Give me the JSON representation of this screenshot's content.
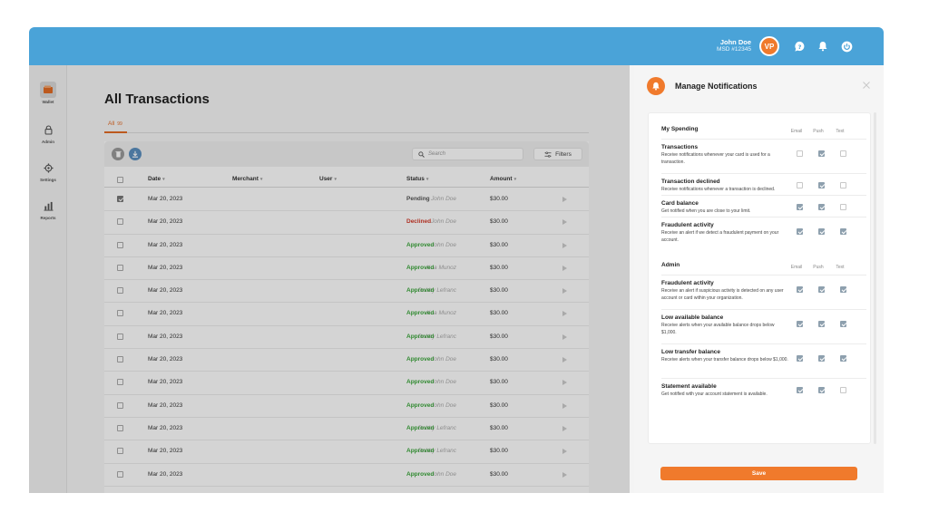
{
  "header": {
    "user_name": "John Doe",
    "user_id": "MSD #12345",
    "avatar_initials": "VP",
    "brand_color": "#4aa3d8",
    "accent_color": "#f07a2c"
  },
  "sidebar": {
    "items": [
      {
        "label": "Wallet",
        "icon": "wallet-icon"
      },
      {
        "label": "Admin",
        "icon": "lock-icon"
      },
      {
        "label": "Settings",
        "icon": "gear-icon"
      },
      {
        "label": "Reports",
        "icon": "bar-chart-icon"
      }
    ]
  },
  "main": {
    "title": "All Transactions",
    "tab": {
      "label": "All",
      "count": "99"
    },
    "search_placeholder": "Search",
    "filters_label": "Filters",
    "columns": [
      "Date",
      "Merchant",
      "User",
      "Status",
      "Amount"
    ],
    "rows": [
      {
        "date": "Mar 20, 2023",
        "merchant": "",
        "user": "John Doe",
        "status": "Pending",
        "amount": "$30.00",
        "checked": true
      },
      {
        "date": "Mar 20, 2023",
        "merchant": "",
        "user": "John Doe",
        "status": "Declined",
        "amount": "$30.00",
        "checked": false
      },
      {
        "date": "Mar 20, 2023",
        "merchant": "",
        "user": "John Doe",
        "status": "Approved",
        "amount": "$30.00",
        "checked": false
      },
      {
        "date": "Mar 20, 2023",
        "merchant": "",
        "user": "Koa Munoz",
        "status": "Approved",
        "amount": "$30.00",
        "checked": false
      },
      {
        "date": "Mar 20, 2023",
        "merchant": "",
        "user": "Dobby Lefranc",
        "status": "Approved",
        "amount": "$30.00",
        "checked": false
      },
      {
        "date": "Mar 20, 2023",
        "merchant": "",
        "user": "Koa Munoz",
        "status": "Approved",
        "amount": "$30.00",
        "checked": false
      },
      {
        "date": "Mar 20, 2023",
        "merchant": "",
        "user": "Dobby Lefranc",
        "status": "Approved",
        "amount": "$30.00",
        "checked": false
      },
      {
        "date": "Mar 20, 2023",
        "merchant": "",
        "user": "John Doe",
        "status": "Approved",
        "amount": "$30.00",
        "checked": false
      },
      {
        "date": "Mar 20, 2023",
        "merchant": "",
        "user": "John Doe",
        "status": "Approved",
        "amount": "$30.00",
        "checked": false
      },
      {
        "date": "Mar 20, 2023",
        "merchant": "",
        "user": "John Doe",
        "status": "Approved",
        "amount": "$30.00",
        "checked": false
      },
      {
        "date": "Mar 20, 2023",
        "merchant": "",
        "user": "Dobby Lefranc",
        "status": "Approved",
        "amount": "$30.00",
        "checked": false
      },
      {
        "date": "Mar 20, 2023",
        "merchant": "",
        "user": "Dobby Lefranc",
        "status": "Approved",
        "amount": "$30.00",
        "checked": false
      },
      {
        "date": "Mar 20, 2023",
        "merchant": "",
        "user": "John Doe",
        "status": "Approved",
        "amount": "$30.00",
        "checked": false
      }
    ]
  },
  "panel": {
    "title": "Manage Notifications",
    "channels": [
      "Email",
      "Push",
      "Text"
    ],
    "sections": [
      {
        "title": "My Spending",
        "items": [
          {
            "title": "Transactions",
            "desc": "Receive notifications whenever your card is used for a transaction.",
            "email": false,
            "push": true,
            "text": false
          },
          {
            "title": "Transaction declined",
            "desc": "Receive notifications whenever a transaction is declined.",
            "email": false,
            "push": true,
            "text": false
          },
          {
            "title": "Card balance",
            "desc": "Get notified when you are close to your limit.",
            "email": true,
            "push": true,
            "text": false
          },
          {
            "title": "Fraudulent activity",
            "desc": "Receive an alert if we detect a fraudulent payment on your account.",
            "email": true,
            "push": true,
            "text": true
          }
        ]
      },
      {
        "title": "Admin",
        "items": [
          {
            "title": "Fraudulent activity",
            "desc": "Receive an alert if suspicious activity is detected on any user account or card within your organization.",
            "email": true,
            "push": true,
            "text": true
          },
          {
            "title": "Low available balance",
            "desc": "Receive alerts when your available balance drops below $1,000.",
            "email": true,
            "push": true,
            "text": true
          },
          {
            "title": "Low transfer balance",
            "desc": "Receive alerts when your transfer balance drops below $1,000.",
            "email": true,
            "push": true,
            "text": true
          },
          {
            "title": "Statement available",
            "desc": "Get notified with your account statement is available.",
            "email": true,
            "push": true,
            "text": false
          }
        ]
      }
    ],
    "save_label": "Save"
  }
}
